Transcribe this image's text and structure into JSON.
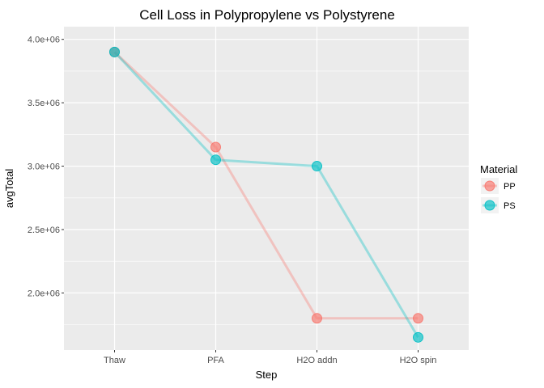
{
  "chart_data": {
    "type": "line",
    "title": "Cell Loss in Polypropylene vs Polystyrene",
    "xlabel": "Step",
    "ylabel": "avgTotal",
    "categories": [
      "Thaw",
      "PFA",
      "H2O addn",
      "H2O spin"
    ],
    "ylim": [
      1550000,
      4100000
    ],
    "yticks": [
      2000000,
      2500000,
      3000000,
      3500000,
      4000000
    ],
    "ytick_labels": [
      "2.0e+06",
      "2.5e+06",
      "3.0e+06",
      "3.5e+06",
      "4.0e+06"
    ],
    "grid": true,
    "legend": {
      "title": "Material",
      "position": "right"
    },
    "series": [
      {
        "name": "PP",
        "color": "#F8766D",
        "values": [
          3900000,
          3150000,
          1800000,
          1800000
        ]
      },
      {
        "name": "PS",
        "color": "#00BFC4",
        "values": [
          3900000,
          3050000,
          3000000,
          1650000
        ]
      }
    ]
  }
}
